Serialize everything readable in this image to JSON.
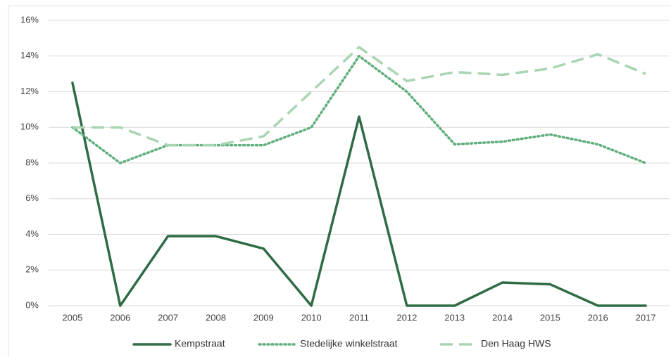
{
  "chart_data": {
    "type": "line",
    "categories": [
      "2005",
      "2006",
      "2007",
      "2008",
      "2009",
      "2010",
      "2011",
      "2012",
      "2013",
      "2014",
      "2015",
      "2016",
      "2017"
    ],
    "series": [
      {
        "name": "Kempstraat",
        "color": "#2f6b44",
        "dash": "solid",
        "values": [
          12.5,
          0,
          3.9,
          3.9,
          3.2,
          0,
          10.6,
          0,
          0,
          1.3,
          1.2,
          0,
          0
        ]
      },
      {
        "name": "Stedelijke winkelstraat",
        "color": "#5fae7c",
        "dash": "dotted",
        "values": [
          10,
          8,
          9,
          9,
          9,
          10,
          14,
          12,
          9.05,
          9.2,
          9.6,
          9.05,
          8
        ]
      },
      {
        "name": "Den Haag HWS",
        "color": "#a9d5b2",
        "dash": "dashed",
        "values": [
          10,
          10,
          9,
          9,
          9.5,
          12,
          14.5,
          12.6,
          13.1,
          12.95,
          13.3,
          14.1,
          13
        ]
      }
    ],
    "ylim": [
      0,
      16
    ],
    "yticks": [
      {
        "value": 0,
        "label": "0%"
      },
      {
        "value": 2,
        "label": "2%"
      },
      {
        "value": 4,
        "label": "4%"
      },
      {
        "value": 6,
        "label": "6%"
      },
      {
        "value": 8,
        "label": "8%"
      },
      {
        "value": 10,
        "label": "10%"
      },
      {
        "value": 12,
        "label": "12%"
      },
      {
        "value": 14,
        "label": "14%"
      },
      {
        "value": 16,
        "label": "16%"
      }
    ],
    "grid": true,
    "legend": "bottom"
  }
}
